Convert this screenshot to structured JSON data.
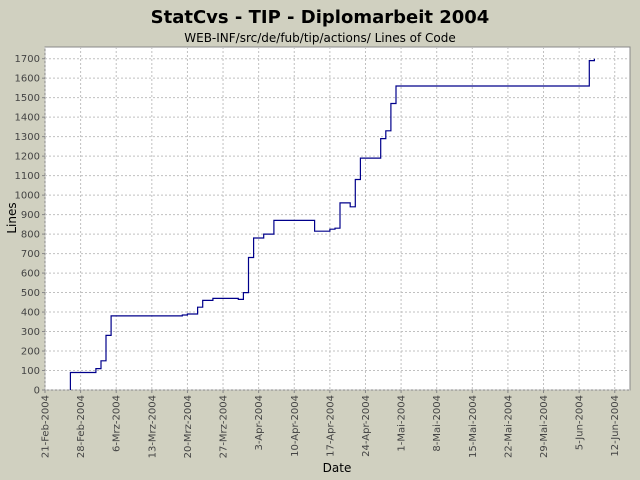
{
  "chart_data": {
    "type": "line",
    "title": "StatCvs - TIP - Diplomarbeit 2004",
    "subtitle": "WEB-INF/src/de/fub/tip/actions/ Lines of Code",
    "xlabel": "Date",
    "ylabel": "Lines",
    "ylim": [
      0,
      1760
    ],
    "xlim": [
      "2004-02-21",
      "2004-06-15"
    ],
    "grid": true,
    "line_color": "#00008b",
    "plot_background": "#ffffff",
    "page_background": "#d0d0c0",
    "x_tick_labels": [
      "21-Feb-2004",
      "28-Feb-2004",
      "6-Mrz-2004",
      "13-Mrz-2004",
      "20-Mrz-2004",
      "27-Mrz-2004",
      "3-Apr-2004",
      "10-Apr-2004",
      "17-Apr-2004",
      "24-Apr-2004",
      "1-Mai-2004",
      "8-Mai-2004",
      "15-Mai-2004",
      "22-Mai-2004",
      "29-Mai-2004",
      "5-Jun-2004",
      "12-Jun-2004"
    ],
    "y_ticks": [
      0,
      100,
      200,
      300,
      400,
      500,
      600,
      700,
      800,
      900,
      1000,
      1100,
      1200,
      1300,
      1400,
      1500,
      1600,
      1700
    ],
    "series": [
      {
        "x": [
          "2004-02-26",
          "2004-02-26",
          "2004-03-01",
          "2004-03-02",
          "2004-03-03",
          "2004-03-03",
          "2004-03-04",
          "2004-03-04",
          "2004-03-05",
          "2004-03-18",
          "2004-03-19",
          "2004-03-20",
          "2004-03-22",
          "2004-03-23",
          "2004-03-25",
          "2004-03-30",
          "2004-03-31",
          "2004-04-01",
          "2004-04-02",
          "2004-04-02",
          "2004-04-04",
          "2004-04-06",
          "2004-04-06",
          "2004-04-14",
          "2004-04-16",
          "2004-04-17",
          "2004-04-18",
          "2004-04-19",
          "2004-04-21",
          "2004-04-21",
          "2004-04-22",
          "2004-04-23",
          "2004-04-24",
          "2004-04-25",
          "2004-04-27",
          "2004-04-27",
          "2004-04-28",
          "2004-04-28",
          "2004-04-29",
          "2004-04-29",
          "2004-04-30",
          "2004-04-30",
          "2004-05-01",
          "2004-06-06",
          "2004-06-07",
          "2004-06-07",
          "2004-06-08"
        ],
        "y": [
          0,
          90,
          90,
          110,
          120,
          150,
          200,
          280,
          380,
          380,
          385,
          390,
          425,
          460,
          470,
          465,
          500,
          680,
          760,
          780,
          800,
          800,
          870,
          815,
          815,
          825,
          830,
          960,
          960,
          940,
          1080,
          1190,
          1190,
          1190,
          1250,
          1290,
          1300,
          1330,
          1350,
          1470,
          1490,
          1560,
          1560,
          1560,
          1630,
          1690,
          1700
        ]
      }
    ]
  }
}
